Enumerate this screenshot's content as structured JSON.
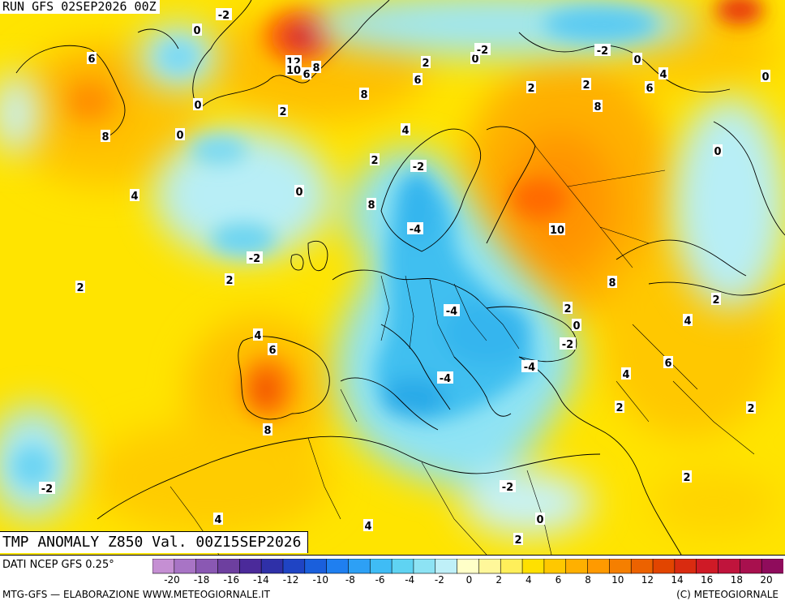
{
  "header": {
    "run_label": "RUN GFS 02SEP2026 00Z"
  },
  "footer": {
    "valid_label": "TMP ANOMALY Z850 Val. 00Z15SEP2026",
    "data_source": "DATI NCEP GFS 0.25°",
    "credit": "MTG-GFS — ELABORAZIONE WWW.METEOGIORNALE.IT",
    "copyright": "(C) METEOGIORNALE"
  },
  "legend": {
    "colors": [
      "#c58fd3",
      "#a874c5",
      "#8a58b3",
      "#6d3f9f",
      "#4b2a9a",
      "#2f30a8",
      "#1f44c4",
      "#1a5fdc",
      "#1f7ff0",
      "#2da0f5",
      "#3fbcf5",
      "#5fd3f2",
      "#8de3f4",
      "#bff0f8",
      "#ffffc8",
      "#fff79a",
      "#ffef5a",
      "#ffe000",
      "#ffc800",
      "#ffb000",
      "#ff9a00",
      "#f57f00",
      "#ec6200",
      "#e24500",
      "#d92b10",
      "#cf1a26",
      "#c0143c",
      "#a8104e",
      "#8f0c5c"
    ],
    "ticks": [
      "-20",
      "-18",
      "-16",
      "-14",
      "-12",
      "-10",
      "-8",
      "-6",
      "-4",
      "-2",
      "0",
      "2",
      "4",
      "6",
      "8",
      "10",
      "12",
      "14",
      "16",
      "18",
      "20"
    ]
  },
  "map_labels": [
    {
      "text": "-2"
    },
    {
      "text": "0"
    },
    {
      "text": "12"
    },
    {
      "text": "10"
    },
    {
      "text": "8"
    },
    {
      "text": "6"
    },
    {
      "text": "6"
    },
    {
      "text": "8"
    },
    {
      "text": "0"
    },
    {
      "text": "0"
    },
    {
      "text": "2"
    },
    {
      "text": "4"
    },
    {
      "text": "8"
    },
    {
      "text": "2"
    },
    {
      "text": "6"
    },
    {
      "text": "4"
    },
    {
      "text": "-2"
    },
    {
      "text": "0"
    },
    {
      "text": "-2"
    },
    {
      "text": "0"
    },
    {
      "text": "2"
    },
    {
      "text": "2"
    },
    {
      "text": "6"
    },
    {
      "text": "4"
    },
    {
      "text": "8"
    },
    {
      "text": "0"
    },
    {
      "text": "2"
    },
    {
      "text": "-2"
    },
    {
      "text": "0"
    },
    {
      "text": "0"
    },
    {
      "text": "-4"
    },
    {
      "text": "10"
    },
    {
      "text": "-2"
    },
    {
      "text": "2"
    },
    {
      "text": "2"
    },
    {
      "text": "8"
    },
    {
      "text": "-4"
    },
    {
      "text": "2"
    },
    {
      "text": "0"
    },
    {
      "text": "4"
    },
    {
      "text": "-2"
    },
    {
      "text": "6"
    },
    {
      "text": "-4"
    },
    {
      "text": "-4"
    },
    {
      "text": "4"
    },
    {
      "text": "2"
    },
    {
      "text": "8"
    },
    {
      "text": "2"
    },
    {
      "text": "-2"
    },
    {
      "text": "-2"
    },
    {
      "text": "2"
    },
    {
      "text": "4"
    },
    {
      "text": "4"
    },
    {
      "text": "0"
    },
    {
      "text": "2"
    },
    {
      "text": "4"
    },
    {
      "text": "2"
    },
    {
      "text": "6"
    },
    {
      "text": "8"
    }
  ]
}
